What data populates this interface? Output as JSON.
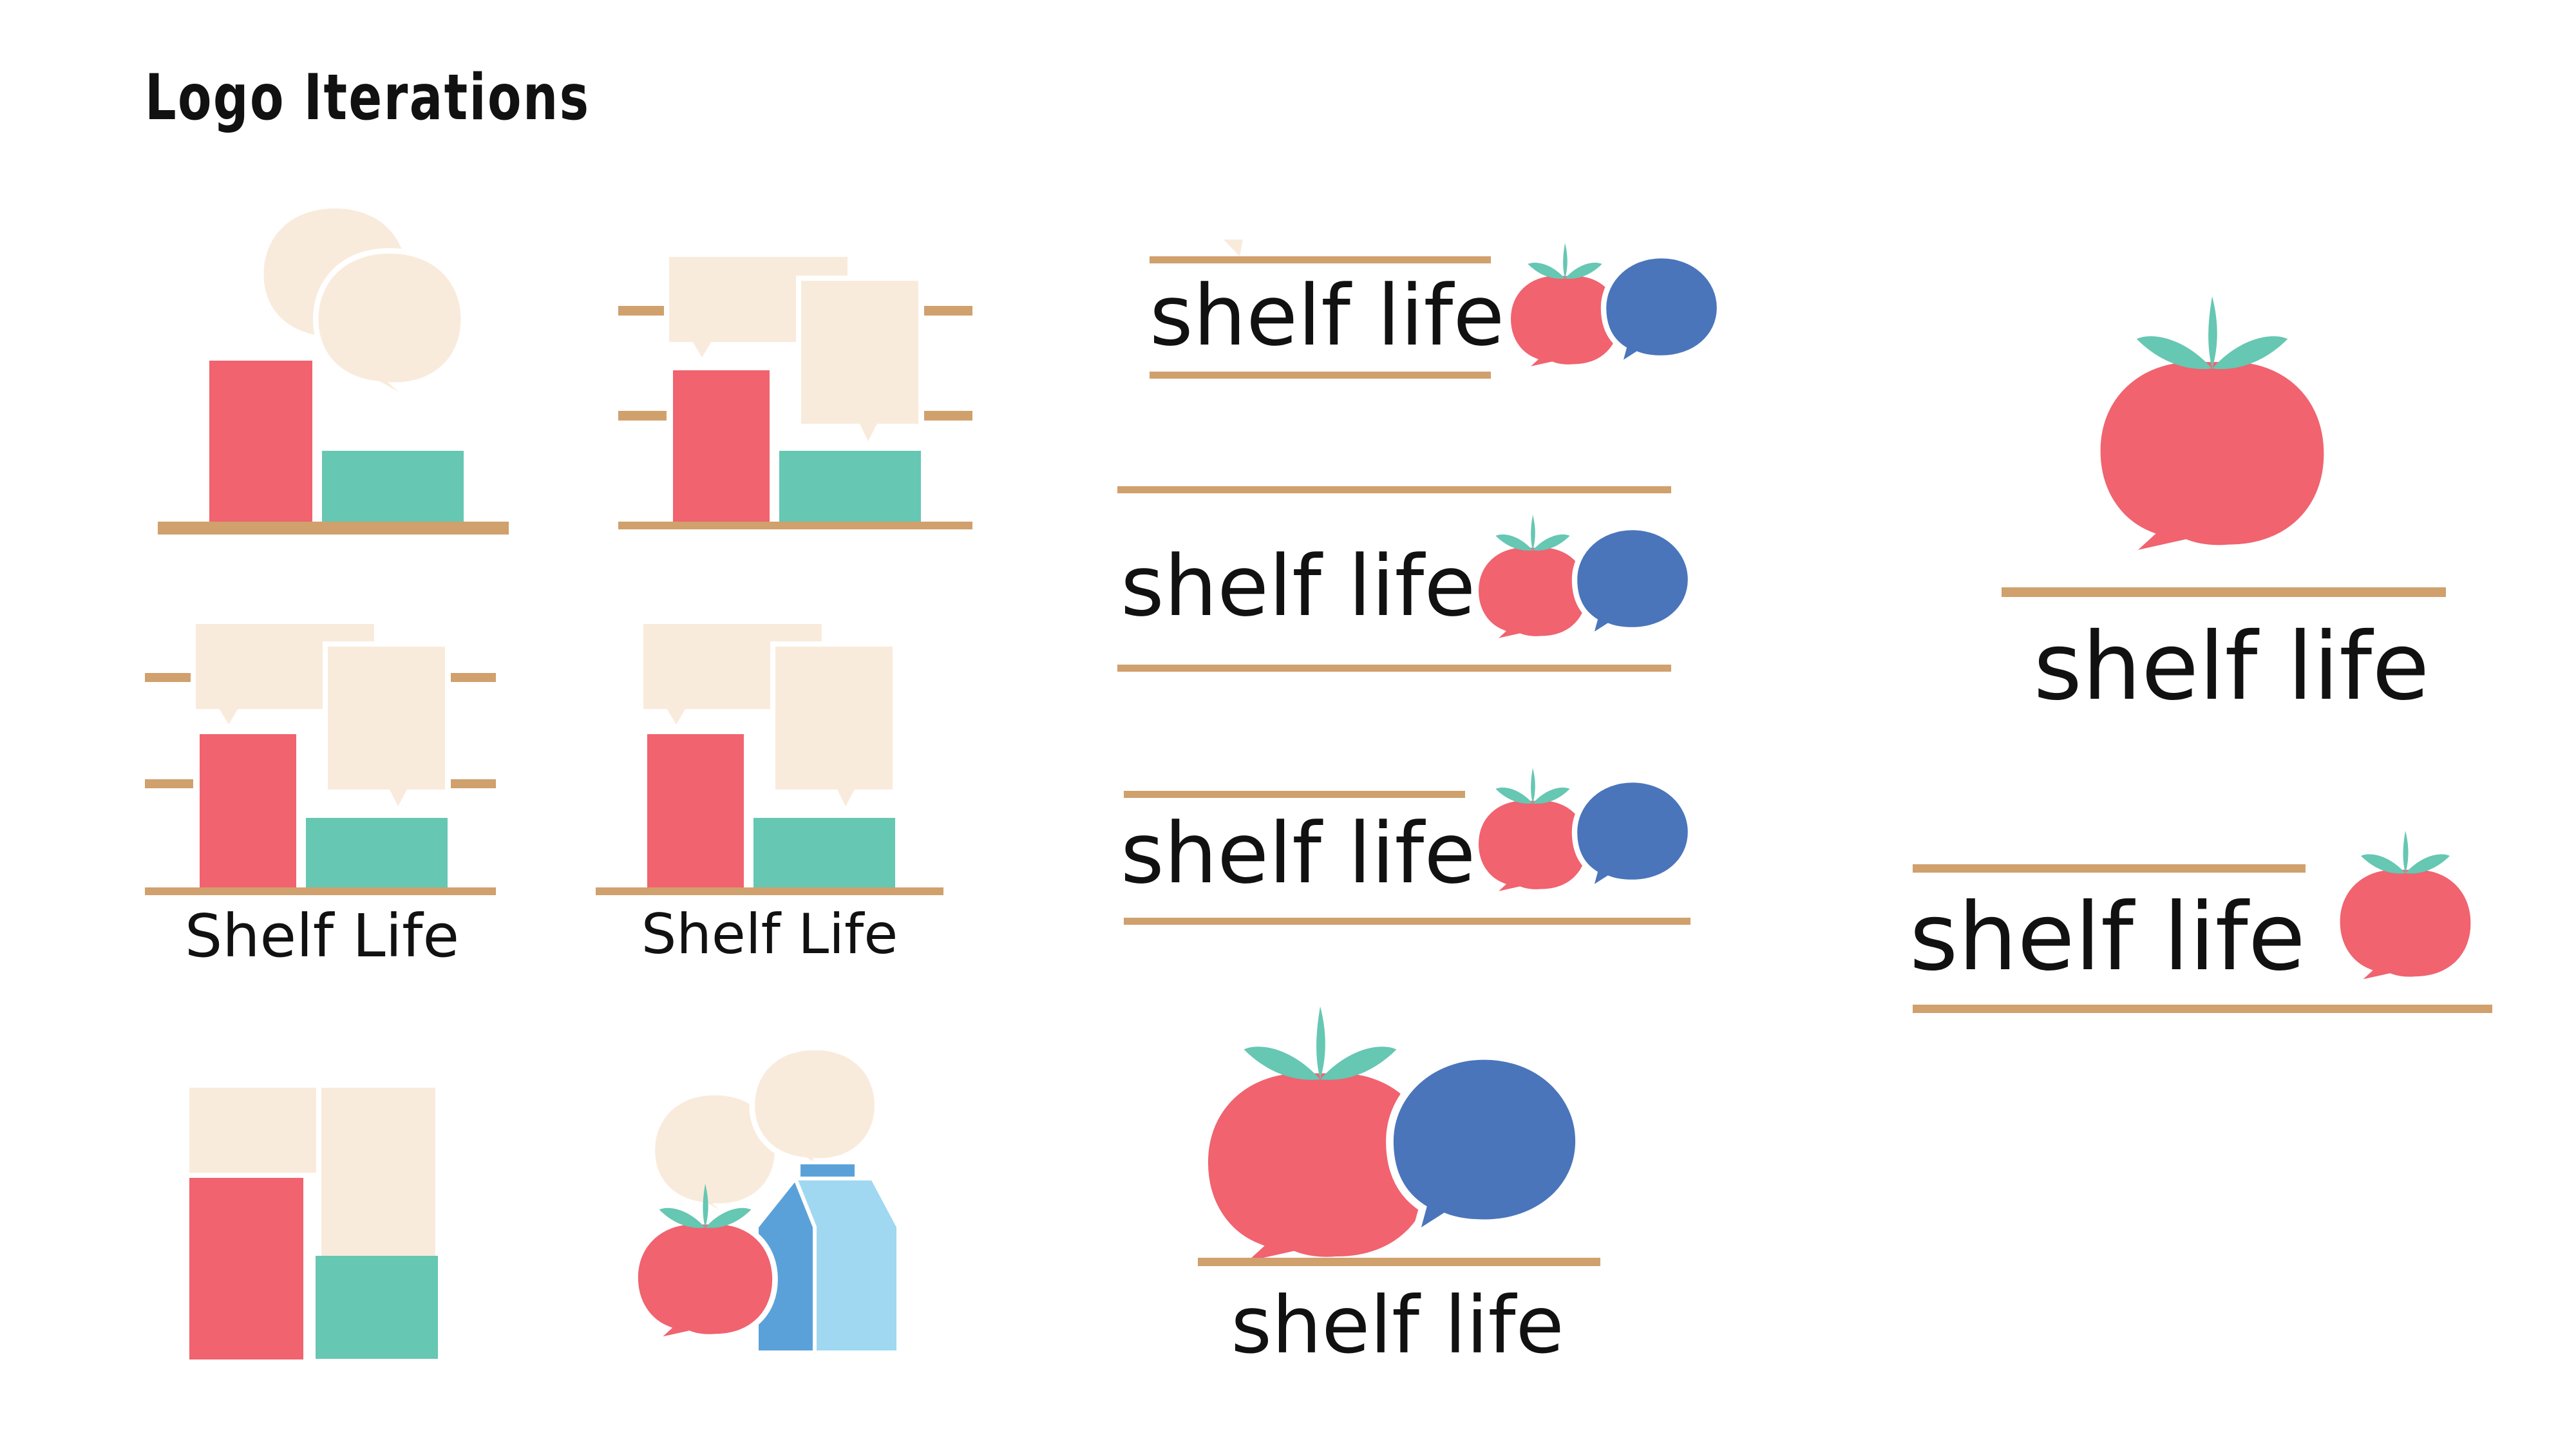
{
  "page": {
    "title": "Logo Iterations"
  },
  "palette": {
    "tomato": "#f0636f",
    "leaf": "#66c7b3",
    "bubble_cream": "#f9ebdc",
    "bubble_blue": "#4a75bb",
    "shelf": "#d0a06d",
    "carton_dark": "#5ba1d9",
    "carton_light": "#a0d8f2",
    "text": "#111111"
  },
  "logos": {
    "shelf_icon_speech": {
      "wordmark": ""
    },
    "shelf_icon_rectangles": {
      "wordmark": ""
    },
    "shelf_icon_titled_a": {
      "wordmark": "Shelf Life"
    },
    "shelf_icon_titled_b": {
      "wordmark": "Shelf Life"
    },
    "stacked_blocks_icon": {
      "wordmark": ""
    },
    "tomato_carton_icon": {
      "wordmark": ""
    },
    "horizontal_wordmark_1": {
      "wordmark": "shelf life"
    },
    "horizontal_wordmark_2": {
      "wordmark": "shelf life"
    },
    "horizontal_wordmark_3": {
      "wordmark": "shelf life"
    },
    "stacked_tomato_bubble": {
      "wordmark": "shelf life"
    },
    "final_stacked": {
      "wordmark": "shelf life"
    },
    "final_horizontal": {
      "wordmark": "shelf life"
    }
  }
}
